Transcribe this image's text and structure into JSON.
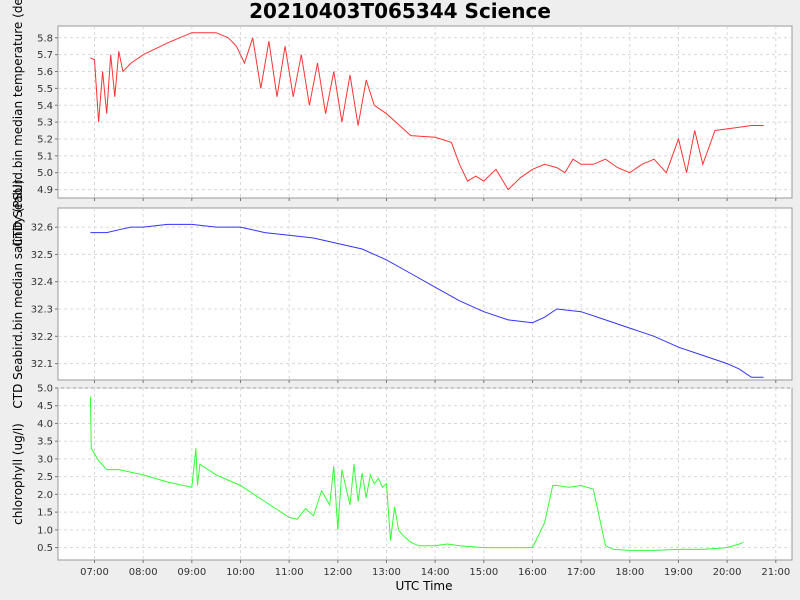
{
  "title": "20210403T065344 Science",
  "x_axis_label": "UTC Time",
  "chart_data": [
    {
      "type": "line",
      "title": "20210403T065344 Science",
      "xlabel": "UTC Time",
      "ylabel": "CTD Seabird.bin median temperature (degC)",
      "color": "#ff3333",
      "xlim": [
        "06:15",
        "21:20"
      ],
      "ylim": [
        4.85,
        5.87
      ],
      "xticks": [
        "07:00",
        "08:00",
        "09:00",
        "10:00",
        "11:00",
        "12:00",
        "13:00",
        "14:00",
        "15:00",
        "16:00",
        "17:00",
        "18:00",
        "19:00",
        "20:00",
        "21:00"
      ],
      "yticks": [
        "4.9",
        "5.0",
        "5.1",
        "5.2",
        "5.3",
        "5.4",
        "5.5",
        "5.6",
        "5.7",
        "5.8"
      ],
      "x": [
        "06:55",
        "07:00",
        "07:05",
        "07:10",
        "07:15",
        "07:20",
        "07:25",
        "07:30",
        "07:35",
        "07:45",
        "08:00",
        "08:30",
        "09:00",
        "09:30",
        "09:45",
        "09:55",
        "10:05",
        "10:15",
        "10:25",
        "10:35",
        "10:45",
        "10:55",
        "11:05",
        "11:15",
        "11:25",
        "11:35",
        "11:45",
        "11:55",
        "12:05",
        "12:15",
        "12:25",
        "12:35",
        "12:45",
        "13:00",
        "13:30",
        "14:00",
        "14:20",
        "14:30",
        "14:40",
        "14:50",
        "15:00",
        "15:15",
        "15:30",
        "15:45",
        "16:00",
        "16:15",
        "16:30",
        "16:40",
        "16:50",
        "17:00",
        "17:15",
        "17:30",
        "17:45",
        "18:00",
        "18:15",
        "18:30",
        "18:45",
        "19:00",
        "19:10",
        "19:20",
        "19:30",
        "19:45",
        "20:00",
        "20:15",
        "20:30",
        "20:45"
      ],
      "y": [
        5.68,
        5.67,
        5.3,
        5.6,
        5.35,
        5.7,
        5.45,
        5.72,
        5.6,
        5.65,
        5.7,
        5.77,
        5.83,
        5.83,
        5.8,
        5.75,
        5.65,
        5.8,
        5.5,
        5.78,
        5.45,
        5.75,
        5.45,
        5.7,
        5.4,
        5.65,
        5.35,
        5.6,
        5.3,
        5.58,
        5.28,
        5.55,
        5.4,
        5.35,
        5.22,
        5.21,
        5.18,
        5.05,
        4.95,
        4.98,
        4.95,
        5.02,
        4.9,
        4.97,
        5.02,
        5.05,
        5.03,
        5.0,
        5.08,
        5.05,
        5.05,
        5.08,
        5.03,
        5.0,
        5.05,
        5.08,
        5.0,
        5.2,
        5.0,
        5.25,
        5.05,
        5.25,
        5.26,
        5.27,
        5.28,
        5.28
      ]
    },
    {
      "type": "line",
      "xlabel": "UTC Time",
      "ylabel": "CTD Seabird.bin median salinity (PSU)",
      "color": "#3333ff",
      "xlim": [
        "06:15",
        "21:20"
      ],
      "ylim": [
        32.04,
        32.67
      ],
      "xticks": [
        "07:00",
        "08:00",
        "09:00",
        "10:00",
        "11:00",
        "12:00",
        "13:00",
        "14:00",
        "15:00",
        "16:00",
        "17:00",
        "18:00",
        "19:00",
        "20:00",
        "21:00"
      ],
      "yticks": [
        "32.1",
        "32.2",
        "32.3",
        "32.4",
        "32.5",
        "32.6"
      ],
      "x": [
        "06:55",
        "07:15",
        "07:30",
        "07:45",
        "08:00",
        "08:30",
        "09:00",
        "09:30",
        "10:00",
        "10:30",
        "11:00",
        "11:30",
        "12:00",
        "12:30",
        "13:00",
        "13:30",
        "14:00",
        "14:30",
        "15:00",
        "15:30",
        "16:00",
        "16:15",
        "16:30",
        "17:00",
        "17:30",
        "18:00",
        "18:30",
        "19:00",
        "19:30",
        "20:00",
        "20:15",
        "20:30",
        "20:45"
      ],
      "y": [
        32.58,
        32.58,
        32.59,
        32.6,
        32.6,
        32.61,
        32.61,
        32.6,
        32.6,
        32.58,
        32.57,
        32.56,
        32.54,
        32.52,
        32.48,
        32.43,
        32.38,
        32.33,
        32.29,
        32.26,
        32.25,
        32.27,
        32.3,
        32.29,
        32.26,
        32.23,
        32.2,
        32.16,
        32.13,
        32.1,
        32.08,
        32.05,
        32.05
      ]
    },
    {
      "type": "line",
      "xlabel": "UTC Time",
      "ylabel": "chlorophyll (ug/l)",
      "color": "#33ff33",
      "xlim": [
        "06:15",
        "21:20"
      ],
      "ylim": [
        0.15,
        5.0
      ],
      "xticks": [
        "07:00",
        "08:00",
        "09:00",
        "10:00",
        "11:00",
        "12:00",
        "13:00",
        "14:00",
        "15:00",
        "16:00",
        "17:00",
        "18:00",
        "19:00",
        "20:00",
        "21:00"
      ],
      "yticks": [
        "0.5",
        "1.0",
        "1.5",
        "2.0",
        "2.5",
        "3.0",
        "3.5",
        "4.0",
        "4.5",
        "5.0"
      ],
      "x": [
        "06:55",
        "06:56",
        "07:05",
        "07:15",
        "07:30",
        "08:00",
        "08:30",
        "09:00",
        "09:05",
        "09:07",
        "09:10",
        "09:30",
        "10:00",
        "10:30",
        "11:00",
        "11:10",
        "11:20",
        "11:30",
        "11:40",
        "11:50",
        "11:55",
        "12:00",
        "12:05",
        "12:10",
        "12:15",
        "12:20",
        "12:25",
        "12:30",
        "12:35",
        "12:40",
        "12:45",
        "12:50",
        "12:55",
        "13:00",
        "13:05",
        "13:10",
        "13:15",
        "13:20",
        "13:30",
        "13:40",
        "13:50",
        "14:00",
        "14:15",
        "14:30",
        "15:00",
        "15:30",
        "16:00",
        "16:15",
        "16:25",
        "16:30",
        "16:45",
        "17:00",
        "17:15",
        "17:30",
        "17:40",
        "18:00",
        "18:30",
        "19:00",
        "19:30",
        "20:00",
        "20:15",
        "20:20"
      ],
      "y": [
        4.75,
        3.3,
        2.95,
        2.7,
        2.7,
        2.55,
        2.35,
        2.2,
        3.3,
        2.25,
        2.85,
        2.55,
        2.25,
        1.8,
        1.35,
        1.3,
        1.6,
        1.4,
        2.1,
        1.7,
        2.8,
        1.0,
        2.7,
        2.2,
        1.7,
        2.85,
        1.8,
        2.6,
        1.9,
        2.55,
        2.3,
        2.45,
        2.2,
        2.3,
        0.7,
        1.65,
        1.0,
        0.85,
        0.65,
        0.55,
        0.55,
        0.55,
        0.6,
        0.55,
        0.5,
        0.5,
        0.5,
        1.2,
        2.25,
        2.25,
        2.2,
        2.25,
        2.15,
        0.55,
        0.45,
        0.42,
        0.42,
        0.45,
        0.45,
        0.5,
        0.6,
        0.65
      ]
    }
  ]
}
